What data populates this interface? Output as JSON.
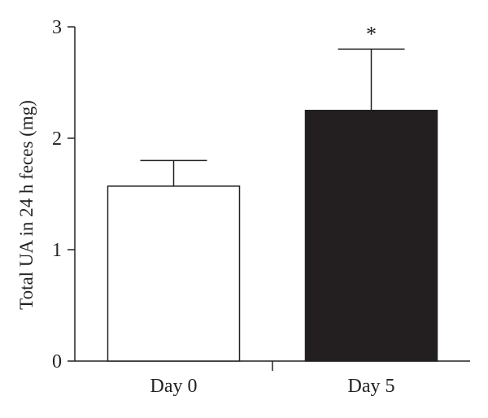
{
  "chart_data": {
    "type": "bar",
    "categories": [
      "Day 0",
      "Day 5"
    ],
    "values": [
      1.57,
      2.25
    ],
    "error_upper": [
      1.8,
      2.8
    ],
    "bar_colors": [
      "#ffffff",
      "#231f20"
    ],
    "ylabel": "Total UA in 24 h feces (mg)",
    "xlabel": "",
    "ylim": [
      0,
      3
    ],
    "yticks": [
      0,
      1,
      2,
      3
    ],
    "annotations": [
      {
        "category": "Day 5",
        "text": "*"
      }
    ],
    "grid": false,
    "legend": "none"
  }
}
